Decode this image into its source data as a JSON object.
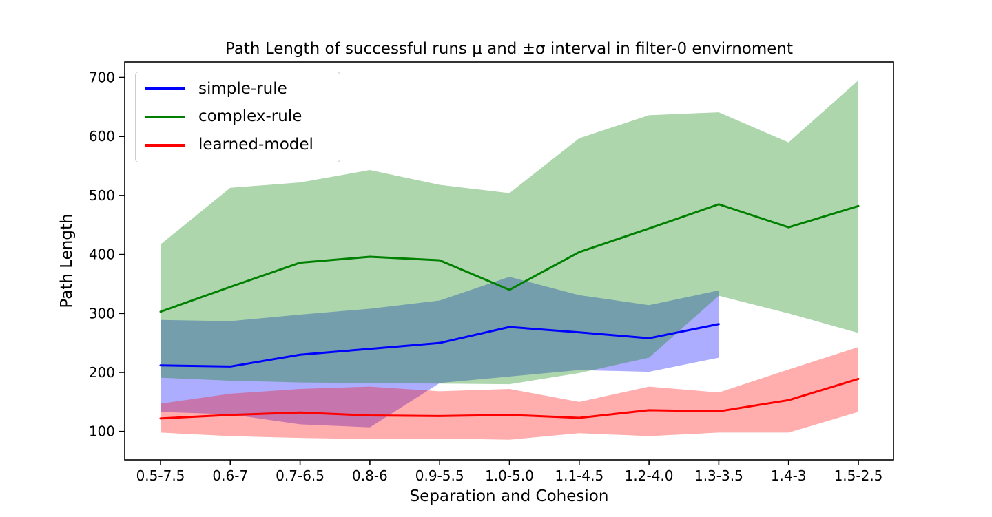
{
  "title": "Path Length of successful runs μ and ±σ interval in filter-0 envirnoment",
  "chart_data": {
    "type": "line",
    "title": "Path Length of successful runs μ and ±σ interval in filter-0 envirnoment",
    "xlabel": "Separation and Cohesion",
    "ylabel": "Path Length",
    "categories": [
      "0.5-7.5",
      "0.6-7",
      "0.7-6.5",
      "0.8-6",
      "0.9-5.5",
      "1.0-5.0",
      "1.1-4.5",
      "1.2-4.0",
      "1.3-3.5",
      "1.4-3",
      "1.5-2.5"
    ],
    "yticks": [
      100,
      200,
      300,
      400,
      500,
      600,
      700
    ],
    "ylim": [
      52,
      726
    ],
    "grid": false,
    "legend_position": "upper left",
    "band_meaning": "mean ± one standard deviation",
    "band_alpha": 0.32,
    "axis_color": "#000000",
    "series": [
      {
        "name": "simple-rule",
        "color": "#0000ff",
        "mean": [
          212,
          210,
          230,
          240,
          250,
          277,
          268,
          258,
          282
        ],
        "upper": [
          289,
          287,
          298,
          308,
          322,
          362,
          331,
          314,
          339
        ],
        "lower": [
          133,
          129,
          112,
          107,
          182,
          193,
          204,
          201,
          225
        ]
      },
      {
        "name": "complex-rule",
        "color": "#008000",
        "mean": [
          303,
          345,
          386,
          396,
          390,
          340,
          404,
          444,
          485,
          446,
          482
        ],
        "upper": [
          417,
          513,
          522,
          543,
          518,
          504,
          597,
          636,
          641,
          590,
          695
        ],
        "lower": [
          191,
          186,
          183,
          182,
          181,
          180,
          199,
          225,
          330,
          300,
          267
        ]
      },
      {
        "name": "learned-model",
        "color": "#ff0000",
        "mean": [
          122,
          128,
          132,
          127,
          126,
          128,
          123,
          136,
          134,
          153,
          189
        ],
        "upper": [
          147,
          164,
          172,
          176,
          168,
          172,
          150,
          176,
          166,
          205,
          243
        ],
        "lower": [
          98,
          92,
          89,
          87,
          88,
          86,
          97,
          92,
          98,
          98,
          133
        ]
      }
    ]
  }
}
